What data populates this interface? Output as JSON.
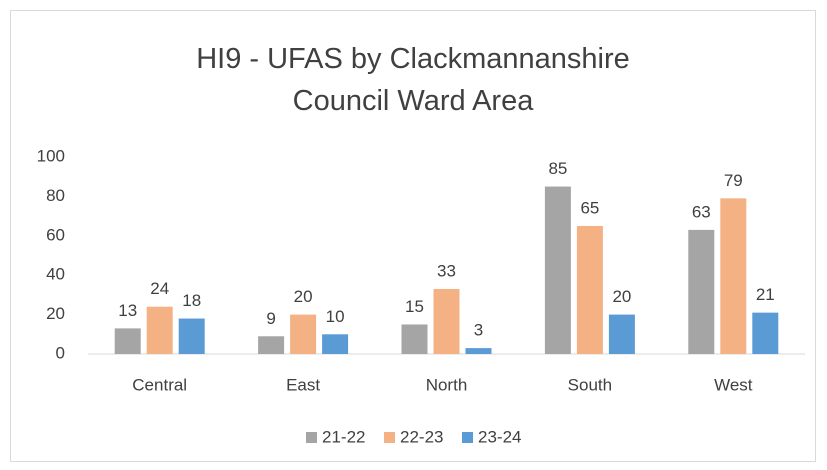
{
  "chart_data": {
    "type": "bar",
    "title": "HI9 - UFAS by Clackmannanshire Council Ward Area",
    "categories": [
      "Central",
      "East",
      "North",
      "South",
      "West"
    ],
    "series": [
      {
        "name": "21-22",
        "color": "#a5a5a5",
        "values": [
          13,
          9,
          15,
          85,
          63
        ]
      },
      {
        "name": "22-23",
        "color": "#f4b183",
        "values": [
          24,
          20,
          33,
          65,
          79
        ]
      },
      {
        "name": "23-24",
        "color": "#5b9bd5",
        "values": [
          18,
          10,
          3,
          20,
          21
        ]
      }
    ],
    "ylim": [
      0,
      100
    ],
    "yticks": [
      0,
      20,
      40,
      60,
      80,
      100
    ],
    "grid": false,
    "legend": "bottom"
  }
}
